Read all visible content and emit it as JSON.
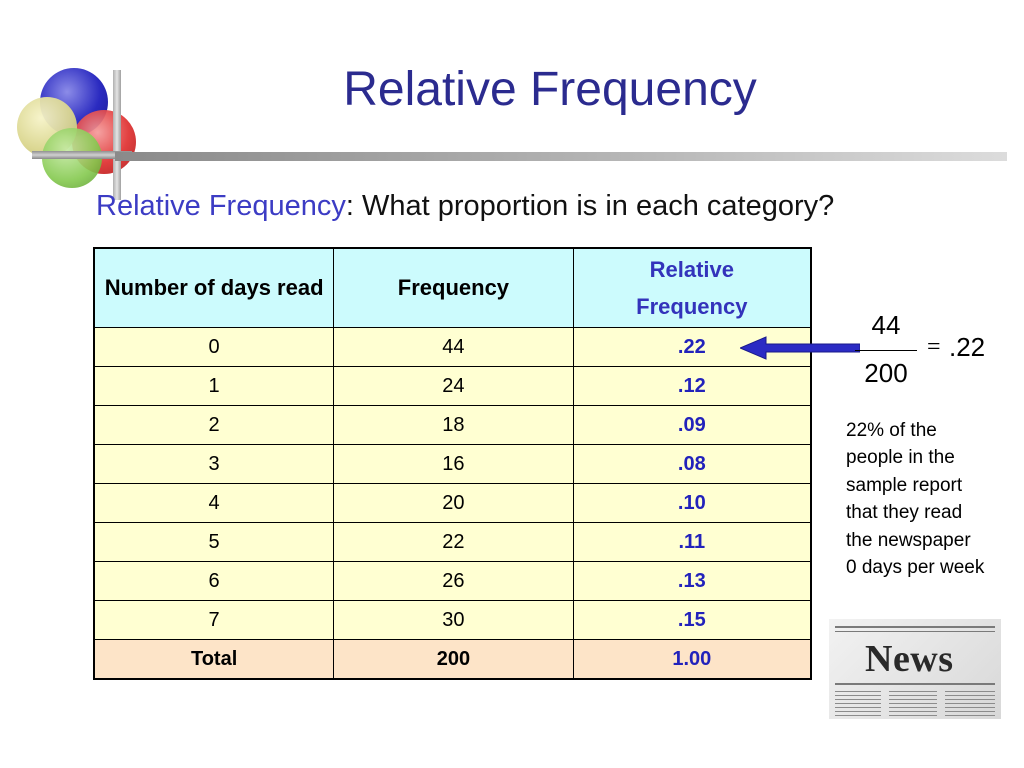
{
  "slide": {
    "title": "Relative Frequency",
    "subtitle_term": "Relative Frequency",
    "subtitle_rest": ": What proportion is in each category?"
  },
  "table": {
    "headers": {
      "days": "Number of days read",
      "frequency": "Frequency",
      "relative_line1": "Relative",
      "relative_line2": "Frequency"
    },
    "rows": [
      {
        "days": "0",
        "frequency": "44",
        "relative": ".22"
      },
      {
        "days": "1",
        "frequency": "24",
        "relative": ".12"
      },
      {
        "days": "2",
        "frequency": "18",
        "relative": ".09"
      },
      {
        "days": "3",
        "frequency": "16",
        "relative": ".08"
      },
      {
        "days": "4",
        "frequency": "20",
        "relative": ".10"
      },
      {
        "days": "5",
        "frequency": "22",
        "relative": ".11"
      },
      {
        "days": "6",
        "frequency": "26",
        "relative": ".13"
      },
      {
        "days": "7",
        "frequency": "30",
        "relative": ".15"
      }
    ],
    "total": {
      "label": "Total",
      "frequency": "200",
      "relative": "1.00"
    }
  },
  "formula": {
    "numerator": "44",
    "denominator": "200",
    "equals": "=",
    "result": ".22"
  },
  "note": {
    "lines": [
      "22% of the",
      "people in the",
      "sample report",
      "that they read",
      "the newspaper",
      "0 days per week"
    ]
  },
  "news_graphic": {
    "word": "News"
  },
  "colors": {
    "title": "#2b2b8f",
    "term": "#3c3cc4",
    "header_bg": "#ccfbfd",
    "row_bg": "#ffffd2",
    "total_bg": "#fde4c8",
    "relative_text": "#2222bb",
    "arrow": "#2b2bc4"
  },
  "icons": {
    "logo": "overlapping-circles-logo",
    "arrow": "left-arrow-icon",
    "news": "newspaper-icon"
  }
}
